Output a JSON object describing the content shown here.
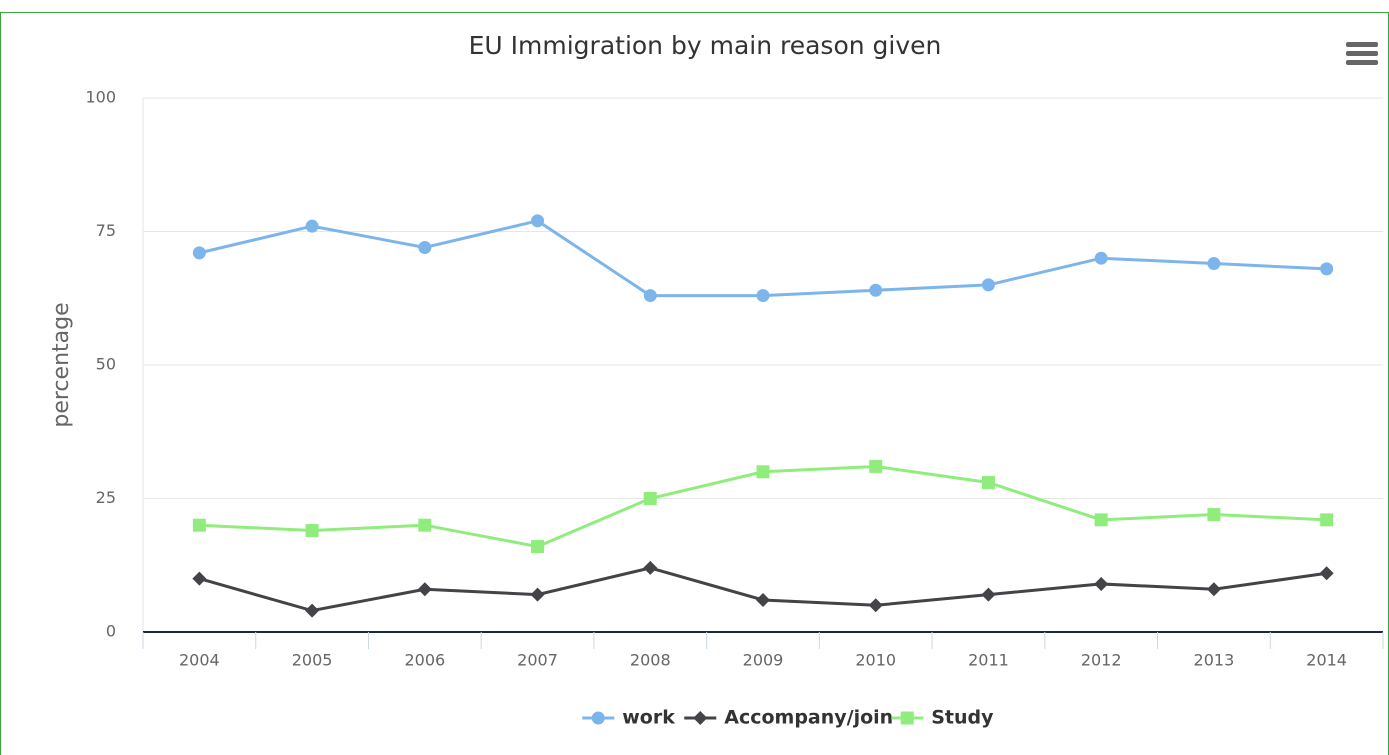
{
  "chart_data": {
    "type": "line",
    "title": "EU Immigration by main reason given",
    "y_label": "percentage",
    "categories": [
      "2004",
      "2005",
      "2006",
      "2007",
      "2008",
      "2009",
      "2010",
      "2011",
      "2012",
      "2013",
      "2014"
    ],
    "series": [
      {
        "name": "work",
        "color": "#7cb5ec",
        "marker": "circle",
        "values": [
          71,
          76,
          72,
          77,
          63,
          63,
          64,
          65,
          70,
          69,
          68
        ]
      },
      {
        "name": "Accompany/join",
        "color": "#434348",
        "marker": "diamond",
        "values": [
          10,
          4,
          8,
          7,
          12,
          6,
          5,
          7,
          9,
          8,
          11
        ]
      },
      {
        "name": "Study",
        "color": "#90ed7d",
        "marker": "square",
        "values": [
          20,
          19,
          20,
          16,
          25,
          30,
          31,
          28,
          21,
          22,
          21
        ]
      }
    ],
    "ylim": [
      0,
      100
    ],
    "yticks": [
      0,
      25,
      50,
      75,
      100
    ],
    "grid": true,
    "legend": "bottom"
  }
}
